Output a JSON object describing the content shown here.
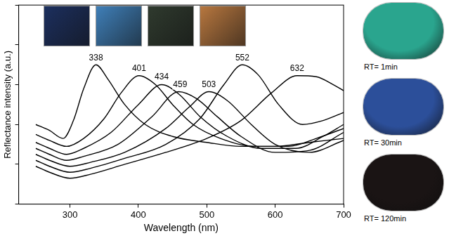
{
  "chart_data": {
    "type": "line",
    "x_label": "Wavelength (nm)",
    "y_label": "Reflectance intensity (a.u.)",
    "xlim": [
      225,
      700
    ],
    "xticks": [
      300,
      400,
      500,
      600,
      700
    ],
    "ylim": [
      0,
      10
    ],
    "yticks": [
      0,
      2,
      4,
      6,
      8,
      10
    ],
    "tick_labels": "x",
    "grid": false,
    "series": [
      {
        "color": "#000000",
        "x": [
          250,
          270,
          290,
          305,
          320,
          338,
          355,
          380,
          410,
          450,
          500,
          550,
          600,
          650,
          700
        ],
        "values": [
          4.0,
          3.7,
          3.3,
          4.2,
          5.8,
          7.0,
          6.3,
          5.0,
          4.0,
          3.4,
          3.1,
          2.9,
          2.9,
          3.1,
          3.3
        ]
      },
      {
        "color": "#000000",
        "x": [
          250,
          270,
          295,
          320,
          350,
          375,
          401,
          425,
          450,
          480,
          520,
          570,
          620,
          660,
          700
        ],
        "values": [
          3.5,
          3.2,
          2.9,
          3.3,
          4.3,
          5.6,
          6.45,
          6.0,
          5.0,
          4.0,
          3.3,
          2.9,
          2.9,
          3.3,
          3.8
        ]
      },
      {
        "color": "#000000",
        "x": [
          250,
          270,
          295,
          320,
          360,
          400,
          434,
          460,
          490,
          530,
          580,
          630,
          670,
          700
        ],
        "values": [
          3.1,
          2.8,
          2.5,
          2.8,
          3.6,
          5.0,
          6.0,
          5.5,
          4.4,
          3.4,
          2.8,
          2.8,
          3.4,
          4.0
        ]
      },
      {
        "color": "#000000",
        "x": [
          250,
          270,
          295,
          320,
          370,
          420,
          459,
          485,
          515,
          550,
          600,
          650,
          700
        ],
        "values": [
          2.8,
          2.5,
          2.2,
          2.4,
          3.0,
          4.4,
          5.65,
          5.3,
          4.4,
          3.4,
          2.6,
          2.7,
          3.6
        ]
      },
      {
        "color": "#000000",
        "x": [
          250,
          270,
          300,
          330,
          380,
          440,
          475,
          503,
          530,
          565,
          600,
          650,
          700
        ],
        "values": [
          2.5,
          2.2,
          1.9,
          2.1,
          2.6,
          3.8,
          4.9,
          5.65,
          5.2,
          4.0,
          3.0,
          2.6,
          3.2
        ]
      },
      {
        "color": "#000000",
        "x": [
          250,
          270,
          300,
          330,
          380,
          440,
          490,
          525,
          552,
          575,
          605,
          640,
          670,
          700
        ],
        "values": [
          2.2,
          1.9,
          1.6,
          1.8,
          2.3,
          3.0,
          4.3,
          6.0,
          7.0,
          6.5,
          5.0,
          4.0,
          4.2,
          4.6
        ]
      },
      {
        "color": "#000000",
        "x": [
          250,
          270,
          300,
          330,
          380,
          440,
          500,
          550,
          595,
          632,
          660,
          685,
          700
        ],
        "values": [
          1.9,
          1.6,
          1.3,
          1.5,
          2.0,
          2.6,
          3.3,
          4.2,
          5.6,
          6.45,
          6.4,
          6.0,
          5.7
        ]
      }
    ],
    "annotations": [
      {
        "text": "338",
        "x": 338,
        "y": 7.35
      },
      {
        "text": "401",
        "x": 401,
        "y": 6.8
      },
      {
        "text": "434",
        "x": 434,
        "y": 6.4
      },
      {
        "text": "459",
        "x": 461,
        "y": 6.0
      },
      {
        "text": "503",
        "x": 503,
        "y": 6.0
      },
      {
        "text": "552",
        "x": 552,
        "y": 7.35
      },
      {
        "text": "632",
        "x": 632,
        "y": 6.8
      }
    ]
  },
  "photos": {
    "top": [
      {
        "color": "#1c2f5e"
      },
      {
        "color": "#3f7fb8"
      },
      {
        "color": "#2f3a2e"
      },
      {
        "color": "#b7773f"
      }
    ],
    "right": [
      {
        "label": "RT= 1min",
        "color": "#2aa58e"
      },
      {
        "label": "RT= 30min",
        "color": "#2c4f9a"
      },
      {
        "label": "RT= 120min",
        "color": "#1a1414"
      }
    ]
  }
}
